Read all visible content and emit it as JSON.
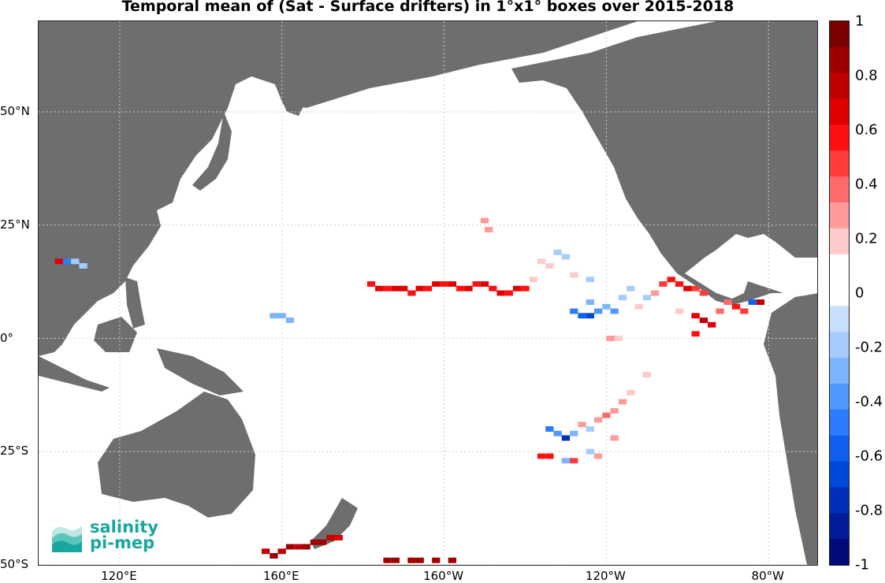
{
  "title": "Temporal mean of (Sat - Surface drifters) in 1°x1° boxes over 2015-2018",
  "map": {
    "lon_range": [
      100,
      292
    ],
    "lat_range": [
      -50,
      70
    ],
    "land_color": "#6e6e6e",
    "ocean_color": "#ffffff",
    "gridlines": true,
    "lat_ticks": [
      {
        "lat": 50,
        "label": "50°N"
      },
      {
        "lat": 25,
        "label": "25°N"
      },
      {
        "lat": 0,
        "label": "0°"
      },
      {
        "lat": -25,
        "label": "25°S"
      },
      {
        "lat": -50,
        "label": "50°S"
      }
    ],
    "lon_ticks": [
      {
        "lon": 120,
        "label": "120°E"
      },
      {
        "lon": 160,
        "label": "160°E"
      },
      {
        "lon": 200,
        "label": "160°W"
      },
      {
        "lon": 240,
        "label": "120°W"
      },
      {
        "lon": 280,
        "label": "80°W"
      }
    ]
  },
  "colorbar": {
    "min": -1,
    "max": 1,
    "ticks": [
      "1",
      "0.8",
      "0.6",
      "0.4",
      "0.2",
      "0",
      "-0.2",
      "-0.4",
      "-0.6",
      "-0.8",
      "-1"
    ],
    "colors_top_to_bottom": [
      "#7a0000",
      "#9e0000",
      "#c00000",
      "#e00000",
      "#ff1010",
      "#ff3c3c",
      "#ff6a6a",
      "#ff9a9a",
      "#ffcaca",
      "#ffffff",
      "#ffffff",
      "#c8e0ff",
      "#a6ccff",
      "#7db4ff",
      "#4f96ff",
      "#2a7dff",
      "#1060f0",
      "#0048d8",
      "#0030b8",
      "#001c98",
      "#000a78"
    ]
  },
  "logo": {
    "line1": "salinity",
    "line2": "pi-mep",
    "color": "#18a7a0"
  },
  "chart_data": {
    "type": "heatmap",
    "title": "Temporal mean of (Sat - Surface drifters) in 1°x1° boxes over 2015-2018",
    "xlabel": "",
    "ylabel": "",
    "value_range": [
      -1,
      1
    ],
    "cells": [
      {
        "lon": 182,
        "lat": 12,
        "v": 0.6
      },
      {
        "lon": 184,
        "lat": 11,
        "v": 0.65
      },
      {
        "lon": 186,
        "lat": 11,
        "v": 0.6
      },
      {
        "lon": 188,
        "lat": 11,
        "v": 0.62
      },
      {
        "lon": 190,
        "lat": 11,
        "v": 0.65
      },
      {
        "lon": 192,
        "lat": 10,
        "v": 0.6
      },
      {
        "lon": 194,
        "lat": 11,
        "v": 0.62
      },
      {
        "lon": 196,
        "lat": 11,
        "v": 0.6
      },
      {
        "lon": 198,
        "lat": 12,
        "v": 0.65
      },
      {
        "lon": 200,
        "lat": 12,
        "v": 0.6
      },
      {
        "lon": 202,
        "lat": 12,
        "v": 0.62
      },
      {
        "lon": 204,
        "lat": 11,
        "v": 0.6
      },
      {
        "lon": 206,
        "lat": 11,
        "v": 0.65
      },
      {
        "lon": 208,
        "lat": 12,
        "v": 0.6
      },
      {
        "lon": 210,
        "lat": 12,
        "v": 0.62
      },
      {
        "lon": 212,
        "lat": 11,
        "v": 0.6
      },
      {
        "lon": 214,
        "lat": 10,
        "v": 0.65
      },
      {
        "lon": 216,
        "lat": 10,
        "v": 0.6
      },
      {
        "lon": 218,
        "lat": 11,
        "v": 0.62
      },
      {
        "lon": 220,
        "lat": 11,
        "v": 0.6
      },
      {
        "lon": 105,
        "lat": 17,
        "v": 0.7
      },
      {
        "lon": 107,
        "lat": 17,
        "v": -0.5
      },
      {
        "lon": 109,
        "lat": 17,
        "v": -0.2
      },
      {
        "lon": 111,
        "lat": 16,
        "v": -0.15
      },
      {
        "lon": 158,
        "lat": 5,
        "v": -0.3
      },
      {
        "lon": 160,
        "lat": 5,
        "v": -0.25
      },
      {
        "lon": 162,
        "lat": 4,
        "v": -0.3
      },
      {
        "lon": 210,
        "lat": 26,
        "v": 0.3
      },
      {
        "lon": 211,
        "lat": 24,
        "v": 0.25
      },
      {
        "lon": 232,
        "lat": 6,
        "v": -0.5
      },
      {
        "lon": 234,
        "lat": 5,
        "v": -0.6
      },
      {
        "lon": 236,
        "lat": 5,
        "v": -0.7
      },
      {
        "lon": 238,
        "lat": 6,
        "v": -0.4
      },
      {
        "lon": 236,
        "lat": 8,
        "v": -0.3
      },
      {
        "lon": 240,
        "lat": 7,
        "v": -0.25
      },
      {
        "lon": 242,
        "lat": 6,
        "v": -0.35
      },
      {
        "lon": 244,
        "lat": 9,
        "v": -0.2
      },
      {
        "lon": 246,
        "lat": 11,
        "v": -0.15
      },
      {
        "lon": 248,
        "lat": 7,
        "v": 0.2
      },
      {
        "lon": 250,
        "lat": 9,
        "v": -0.2
      },
      {
        "lon": 252,
        "lat": 10,
        "v": 0.25
      },
      {
        "lon": 254,
        "lat": 12,
        "v": 0.5
      },
      {
        "lon": 256,
        "lat": 13,
        "v": 0.55
      },
      {
        "lon": 258,
        "lat": 12,
        "v": 0.6
      },
      {
        "lon": 260,
        "lat": 11,
        "v": 0.7
      },
      {
        "lon": 262,
        "lat": 11,
        "v": 0.5
      },
      {
        "lon": 264,
        "lat": 10,
        "v": 0.45
      },
      {
        "lon": 258,
        "lat": 6,
        "v": 0.2
      },
      {
        "lon": 262,
        "lat": 5,
        "v": 0.7
      },
      {
        "lon": 264,
        "lat": 4,
        "v": 0.75
      },
      {
        "lon": 266,
        "lat": 3,
        "v": 0.65
      },
      {
        "lon": 268,
        "lat": 6,
        "v": 0.35
      },
      {
        "lon": 270,
        "lat": 8,
        "v": 0.4
      },
      {
        "lon": 272,
        "lat": 7,
        "v": 0.6
      },
      {
        "lon": 274,
        "lat": 6,
        "v": 0.5
      },
      {
        "lon": 276,
        "lat": 8,
        "v": -0.6
      },
      {
        "lon": 278,
        "lat": 8,
        "v": 0.8
      },
      {
        "lon": 241,
        "lat": 0,
        "v": 0.25
      },
      {
        "lon": 243,
        "lat": 0,
        "v": 0.2
      },
      {
        "lon": 262,
        "lat": 1,
        "v": 0.55
      },
      {
        "lon": 224,
        "lat": 17,
        "v": 0.2
      },
      {
        "lon": 226,
        "lat": 16,
        "v": 0.15
      },
      {
        "lon": 228,
        "lat": 19,
        "v": -0.2
      },
      {
        "lon": 230,
        "lat": 18,
        "v": -0.15
      },
      {
        "lon": 232,
        "lat": 14,
        "v": 0.2
      },
      {
        "lon": 236,
        "lat": 13,
        "v": -0.2
      },
      {
        "lon": 222,
        "lat": 13,
        "v": 0.2
      },
      {
        "lon": 226,
        "lat": -20,
        "v": -0.5
      },
      {
        "lon": 228,
        "lat": -21,
        "v": -0.4
      },
      {
        "lon": 230,
        "lat": -22,
        "v": -0.8
      },
      {
        "lon": 232,
        "lat": -21,
        "v": -0.3
      },
      {
        "lon": 234,
        "lat": -19,
        "v": 0.25
      },
      {
        "lon": 236,
        "lat": -20,
        "v": -0.2
      },
      {
        "lon": 238,
        "lat": -18,
        "v": 0.3
      },
      {
        "lon": 240,
        "lat": -17,
        "v": 0.35
      },
      {
        "lon": 242,
        "lat": -16,
        "v": 0.3
      },
      {
        "lon": 244,
        "lat": -14,
        "v": 0.25
      },
      {
        "lon": 246,
        "lat": -12,
        "v": 0.2
      },
      {
        "lon": 242,
        "lat": -22,
        "v": 0.3
      },
      {
        "lon": 224,
        "lat": -26,
        "v": 0.6
      },
      {
        "lon": 226,
        "lat": -26,
        "v": 0.55
      },
      {
        "lon": 230,
        "lat": -27,
        "v": -0.3
      },
      {
        "lon": 232,
        "lat": -27,
        "v": 0.5
      },
      {
        "lon": 236,
        "lat": -25,
        "v": -0.2
      },
      {
        "lon": 238,
        "lat": -26,
        "v": 0.25
      },
      {
        "lon": 250,
        "lat": -8,
        "v": 0.2
      },
      {
        "lon": 156,
        "lat": -47,
        "v": 0.8
      },
      {
        "lon": 158,
        "lat": -48,
        "v": 0.85
      },
      {
        "lon": 160,
        "lat": -47,
        "v": 0.8
      },
      {
        "lon": 162,
        "lat": -46,
        "v": 0.85
      },
      {
        "lon": 164,
        "lat": -46,
        "v": 0.8
      },
      {
        "lon": 166,
        "lat": -46,
        "v": 0.85
      },
      {
        "lon": 168,
        "lat": -45,
        "v": 0.9
      },
      {
        "lon": 170,
        "lat": -45,
        "v": 0.85
      },
      {
        "lon": 172,
        "lat": -44,
        "v": 0.8
      },
      {
        "lon": 174,
        "lat": -44,
        "v": 0.7
      },
      {
        "lon": 186,
        "lat": -49,
        "v": 0.9
      },
      {
        "lon": 188,
        "lat": -49,
        "v": 0.9
      },
      {
        "lon": 192,
        "lat": -49,
        "v": 0.9
      },
      {
        "lon": 194,
        "lat": -49,
        "v": 0.85
      },
      {
        "lon": 198,
        "lat": -49,
        "v": 0.9
      },
      {
        "lon": 202,
        "lat": -49,
        "v": 0.85
      }
    ]
  }
}
